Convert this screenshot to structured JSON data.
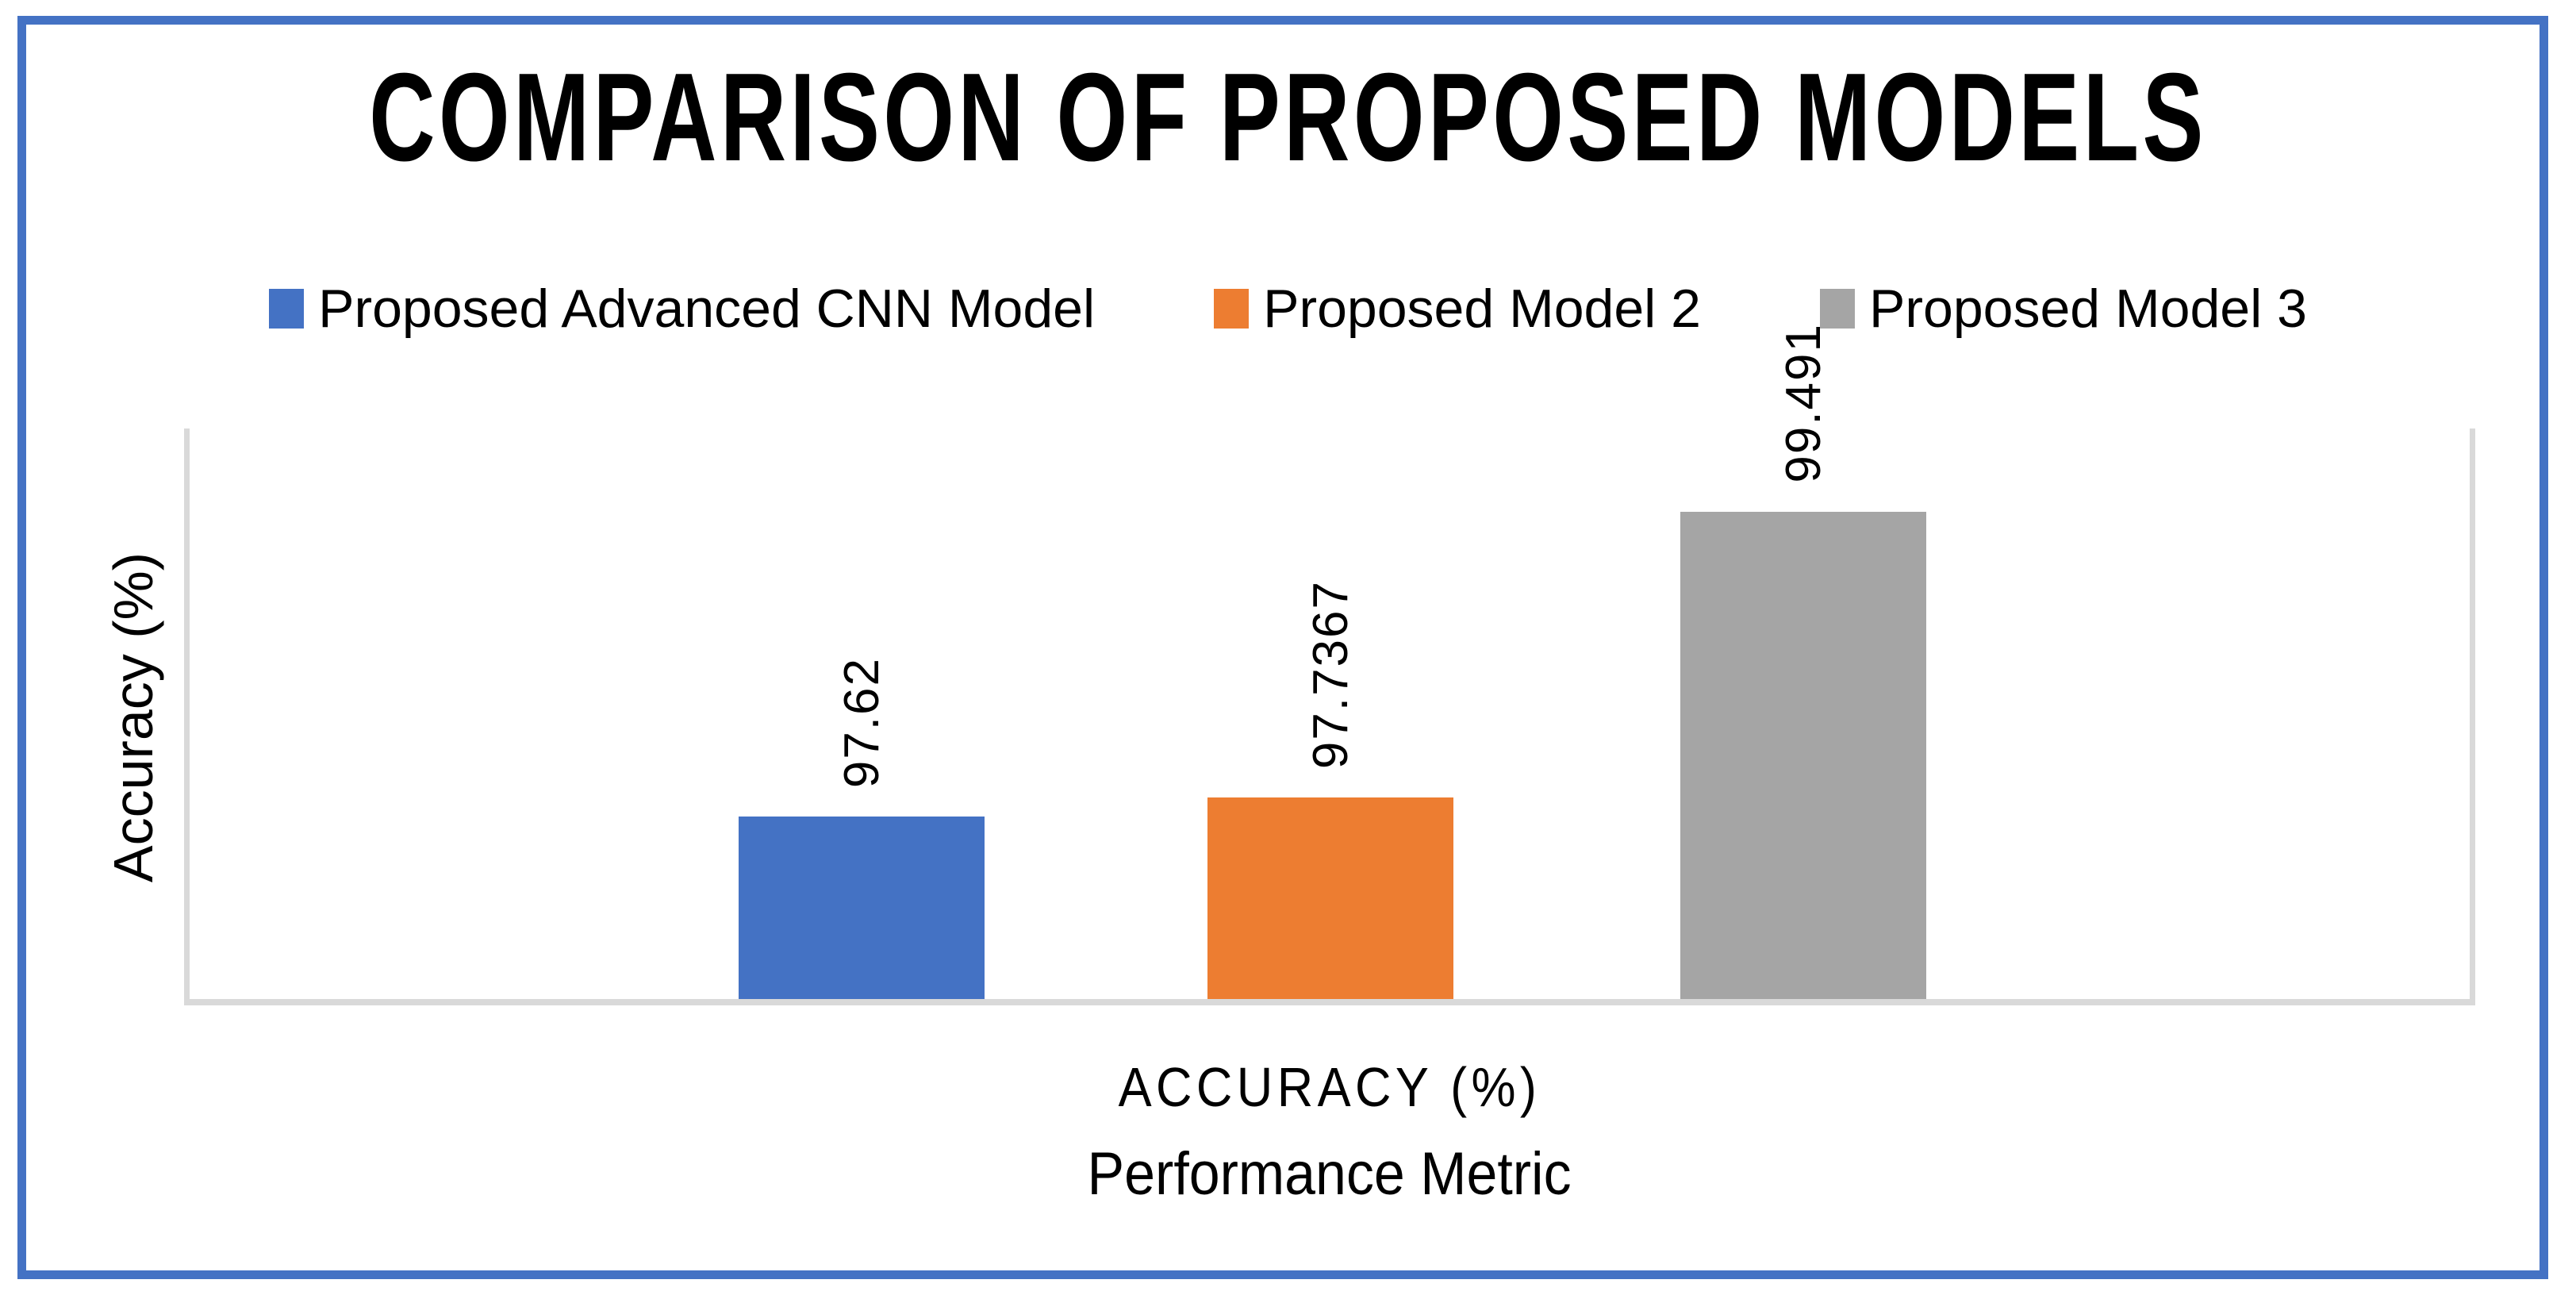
{
  "figure": {
    "title": "COMPARISON OF PROPOSED MODELS",
    "y_axis_title": "Accuracy (%)",
    "x_tick_label": "ACCURACY (%)",
    "x_axis_title": "Performance Metric",
    "frame_color": "#4472C4",
    "axis_line_color": "#D9D9D9"
  },
  "legend": {
    "position": "top",
    "items": [
      {
        "label": "Proposed Advanced CNN Model",
        "color": "#4472C4"
      },
      {
        "label": "Proposed Model 2",
        "color": "#ED7D31"
      },
      {
        "label": "Proposed Model 3",
        "color": "#A5A5A5"
      }
    ]
  },
  "chart_data": {
    "type": "bar",
    "title": "COMPARISON OF PROPOSED MODELS",
    "categories": [
      "ACCURACY (%)"
    ],
    "series": [
      {
        "name": "Proposed Advanced CNN Model",
        "values": [
          97.62
        ],
        "data_label": "97.62",
        "color": "#4472C4"
      },
      {
        "name": "Proposed Model 2",
        "values": [
          97.7367
        ],
        "data_label": "97.7367",
        "color": "#ED7D31"
      },
      {
        "name": "Proposed Model 3",
        "values": [
          99.491
        ],
        "data_label": "99.491",
        "color": "#A5A5A5"
      }
    ],
    "xlabel": "Performance Metric",
    "ylabel": "Accuracy (%)",
    "ylim": [
      96.5,
      100
    ],
    "y_tick_labels_visible": false,
    "grid": false,
    "legend_position": "top",
    "data_labels": "rotated-vertical-above-bars"
  }
}
